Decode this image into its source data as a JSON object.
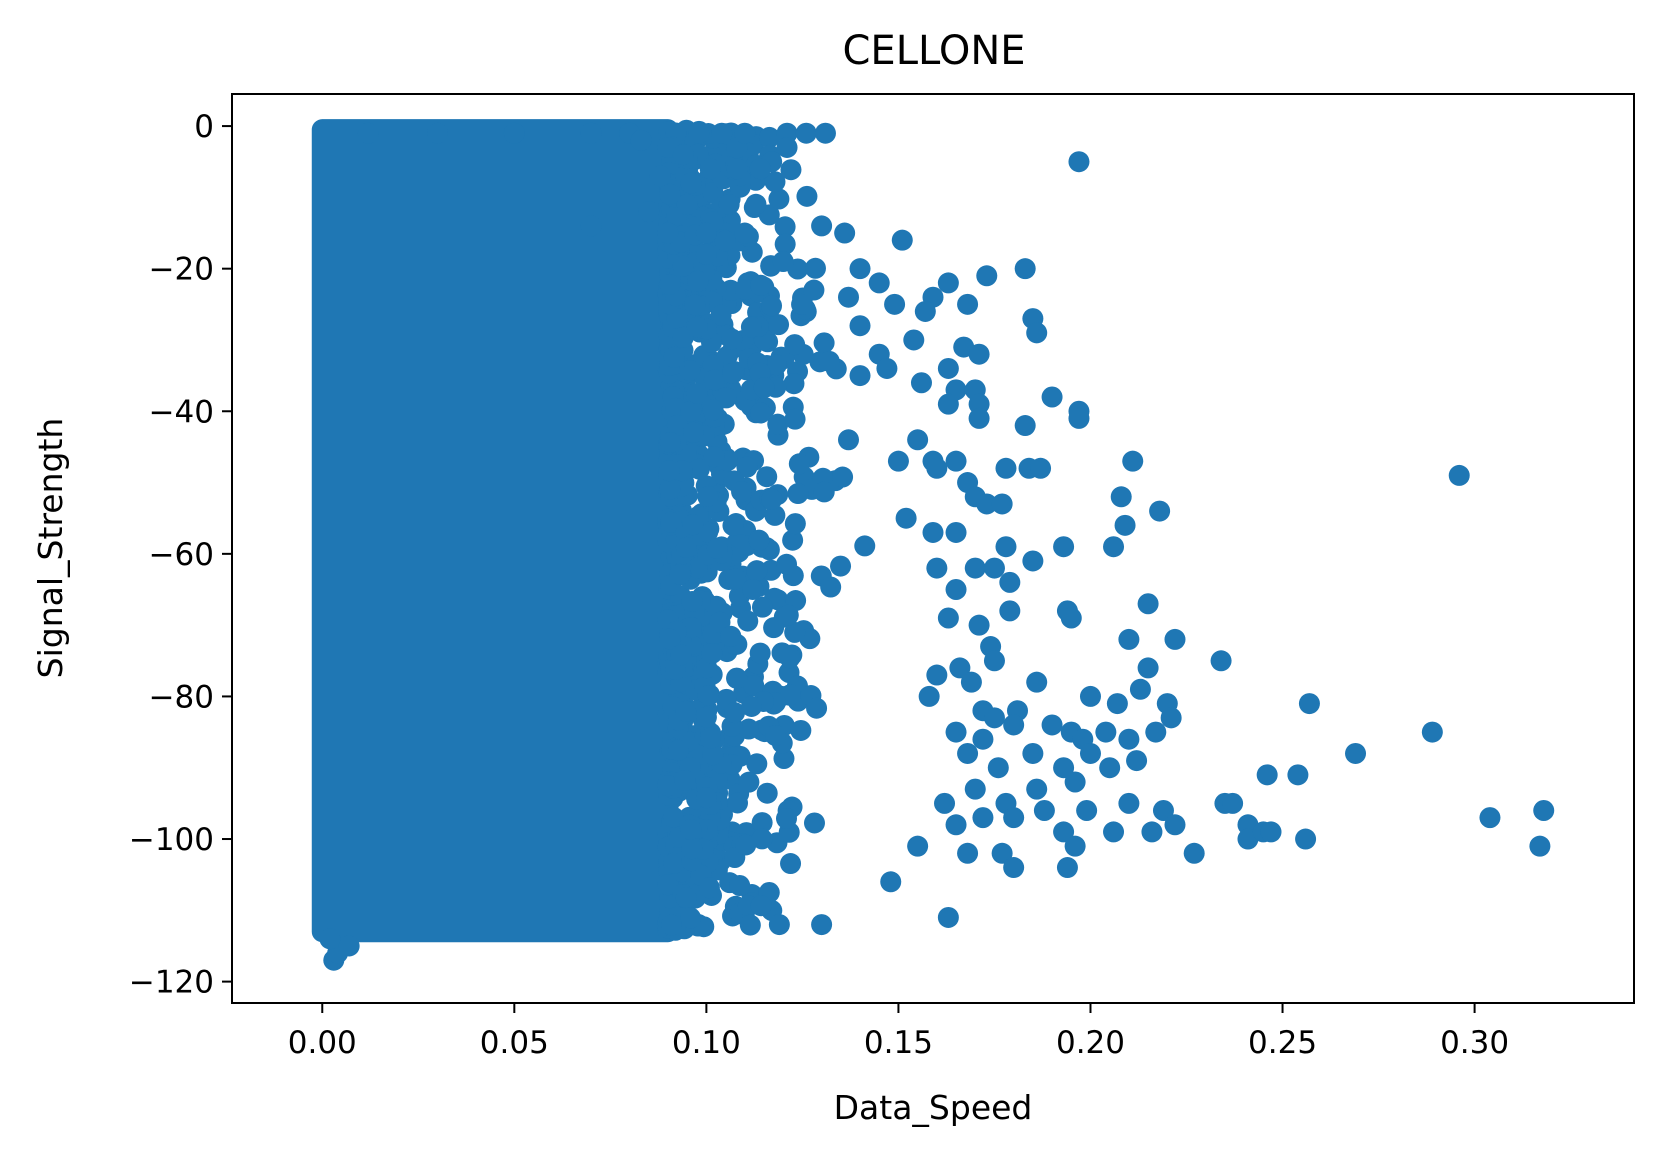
{
  "chart_data": {
    "type": "scatter",
    "title": "CELLONE",
    "xlabel": "Data_Speed",
    "ylabel": "Signal_Strength",
    "xlim": [
      -0.0235,
      0.3415
    ],
    "ylim": [
      -123.0,
      4.5
    ],
    "x_ticks": [
      0.0,
      0.05,
      0.1,
      0.15,
      0.2,
      0.25,
      0.3
    ],
    "x_tick_labels": [
      "0.00",
      "0.05",
      "0.10",
      "0.15",
      "0.20",
      "0.25",
      "0.30"
    ],
    "y_ticks": [
      0,
      -20,
      -40,
      -60,
      -80,
      -100,
      -120
    ],
    "y_tick_labels": [
      "0",
      "−20",
      "−40",
      "−60",
      "−80",
      "−100",
      "−120"
    ],
    "grid": false,
    "legend": "none",
    "marker_color": "#1f77b4",
    "dense_region": {
      "x_range": [
        0.0,
        0.09
      ],
      "y_range": [
        -113.0,
        -0.5
      ],
      "note_points": "fully saturated block of overlapping points"
    },
    "points": [
      [
        0.003,
        -117
      ],
      [
        0.004,
        -116
      ],
      [
        0.007,
        -115
      ],
      [
        0.002,
        -114
      ],
      [
        0.012,
        -1
      ],
      [
        0.03,
        -1
      ],
      [
        0.05,
        -1
      ],
      [
        0.07,
        -1
      ],
      [
        0.08,
        -1
      ],
      [
        0.098,
        -1
      ],
      [
        0.104,
        -1
      ],
      [
        0.11,
        -1
      ],
      [
        0.121,
        -1
      ],
      [
        0.126,
        -1
      ],
      [
        0.131,
        -1
      ],
      [
        0.083,
        -2
      ],
      [
        0.09,
        -3
      ],
      [
        0.094,
        -4
      ],
      [
        0.121,
        -3
      ],
      [
        0.117,
        -5
      ],
      [
        0.101,
        -6
      ],
      [
        0.108,
        -6
      ],
      [
        0.114,
        -6
      ],
      [
        0.197,
        -5
      ],
      [
        0.088,
        -7
      ],
      [
        0.096,
        -8
      ],
      [
        0.095,
        -11
      ],
      [
        0.085,
        -12
      ],
      [
        0.07,
        -14
      ],
      [
        0.09,
        -15
      ],
      [
        0.1,
        -15
      ],
      [
        0.11,
        -15
      ],
      [
        0.13,
        -14
      ],
      [
        0.136,
        -15
      ],
      [
        0.151,
        -16
      ],
      [
        0.1,
        -18
      ],
      [
        0.12,
        -19
      ],
      [
        0.14,
        -20
      ],
      [
        0.145,
        -22
      ],
      [
        0.163,
        -22
      ],
      [
        0.173,
        -21
      ],
      [
        0.183,
        -20
      ],
      [
        0.128,
        -23
      ],
      [
        0.137,
        -24
      ],
      [
        0.149,
        -25
      ],
      [
        0.159,
        -24
      ],
      [
        0.157,
        -26
      ],
      [
        0.168,
        -25
      ],
      [
        0.185,
        -27
      ],
      [
        0.186,
        -29
      ],
      [
        0.14,
        -28
      ],
      [
        0.154,
        -30
      ],
      [
        0.145,
        -32
      ],
      [
        0.167,
        -31
      ],
      [
        0.171,
        -32
      ],
      [
        0.132,
        -33
      ],
      [
        0.14,
        -35
      ],
      [
        0.147,
        -34
      ],
      [
        0.156,
        -36
      ],
      [
        0.163,
        -34
      ],
      [
        0.165,
        -37
      ],
      [
        0.163,
        -39
      ],
      [
        0.17,
        -37
      ],
      [
        0.171,
        -39
      ],
      [
        0.171,
        -41
      ],
      [
        0.19,
        -38
      ],
      [
        0.197,
        -40
      ],
      [
        0.197,
        -41
      ],
      [
        0.183,
        -42
      ],
      [
        0.137,
        -44
      ],
      [
        0.155,
        -44
      ],
      [
        0.15,
        -47
      ],
      [
        0.159,
        -47
      ],
      [
        0.165,
        -47
      ],
      [
        0.16,
        -48
      ],
      [
        0.178,
        -48
      ],
      [
        0.184,
        -48
      ],
      [
        0.187,
        -48
      ],
      [
        0.211,
        -47
      ],
      [
        0.168,
        -50
      ],
      [
        0.17,
        -52
      ],
      [
        0.173,
        -53
      ],
      [
        0.177,
        -53
      ],
      [
        0.208,
        -52
      ],
      [
        0.209,
        -56
      ],
      [
        0.218,
        -54
      ],
      [
        0.296,
        -49
      ],
      [
        0.152,
        -55
      ],
      [
        0.159,
        -57
      ],
      [
        0.165,
        -57
      ],
      [
        0.178,
        -59
      ],
      [
        0.193,
        -59
      ],
      [
        0.206,
        -59
      ],
      [
        0.185,
        -61
      ],
      [
        0.16,
        -62
      ],
      [
        0.17,
        -62
      ],
      [
        0.175,
        -62
      ],
      [
        0.179,
        -64
      ],
      [
        0.165,
        -65
      ],
      [
        0.163,
        -69
      ],
      [
        0.171,
        -70
      ],
      [
        0.174,
        -73
      ],
      [
        0.179,
        -68
      ],
      [
        0.194,
        -68
      ],
      [
        0.195,
        -69
      ],
      [
        0.215,
        -67
      ],
      [
        0.21,
        -72
      ],
      [
        0.222,
        -72
      ],
      [
        0.215,
        -76
      ],
      [
        0.175,
        -75
      ],
      [
        0.16,
        -77
      ],
      [
        0.166,
        -76
      ],
      [
        0.169,
        -78
      ],
      [
        0.186,
        -78
      ],
      [
        0.234,
        -75
      ],
      [
        0.158,
        -80
      ],
      [
        0.172,
        -82
      ],
      [
        0.175,
        -83
      ],
      [
        0.181,
        -82
      ],
      [
        0.2,
        -80
      ],
      [
        0.207,
        -81
      ],
      [
        0.213,
        -79
      ],
      [
        0.22,
        -81
      ],
      [
        0.221,
        -83
      ],
      [
        0.257,
        -81
      ],
      [
        0.165,
        -85
      ],
      [
        0.172,
        -86
      ],
      [
        0.18,
        -84
      ],
      [
        0.19,
        -84
      ],
      [
        0.195,
        -85
      ],
      [
        0.198,
        -86
      ],
      [
        0.204,
        -85
      ],
      [
        0.21,
        -86
      ],
      [
        0.217,
        -85
      ],
      [
        0.289,
        -85
      ],
      [
        0.269,
        -88
      ],
      [
        0.168,
        -88
      ],
      [
        0.176,
        -90
      ],
      [
        0.185,
        -88
      ],
      [
        0.193,
        -90
      ],
      [
        0.2,
        -88
      ],
      [
        0.205,
        -90
      ],
      [
        0.212,
        -89
      ],
      [
        0.246,
        -91
      ],
      [
        0.254,
        -91
      ],
      [
        0.17,
        -93
      ],
      [
        0.178,
        -95
      ],
      [
        0.186,
        -93
      ],
      [
        0.196,
        -92
      ],
      [
        0.21,
        -95
      ],
      [
        0.235,
        -95
      ],
      [
        0.237,
        -95
      ],
      [
        0.162,
        -95
      ],
      [
        0.165,
        -98
      ],
      [
        0.172,
        -97
      ],
      [
        0.18,
        -97
      ],
      [
        0.188,
        -96
      ],
      [
        0.193,
        -99
      ],
      [
        0.199,
        -96
      ],
      [
        0.206,
        -99
      ],
      [
        0.216,
        -99
      ],
      [
        0.219,
        -96
      ],
      [
        0.222,
        -98
      ],
      [
        0.241,
        -98
      ],
      [
        0.241,
        -100
      ],
      [
        0.245,
        -99
      ],
      [
        0.247,
        -99
      ],
      [
        0.256,
        -100
      ],
      [
        0.304,
        -97
      ],
      [
        0.318,
        -96
      ],
      [
        0.196,
        -101
      ],
      [
        0.155,
        -101
      ],
      [
        0.168,
        -102
      ],
      [
        0.177,
        -102
      ],
      [
        0.227,
        -102
      ],
      [
        0.317,
        -101
      ],
      [
        0.18,
        -104
      ],
      [
        0.194,
        -104
      ],
      [
        0.148,
        -106
      ],
      [
        0.163,
        -111
      ],
      [
        0.119,
        -112
      ],
      [
        0.13,
        -112
      ]
    ]
  }
}
